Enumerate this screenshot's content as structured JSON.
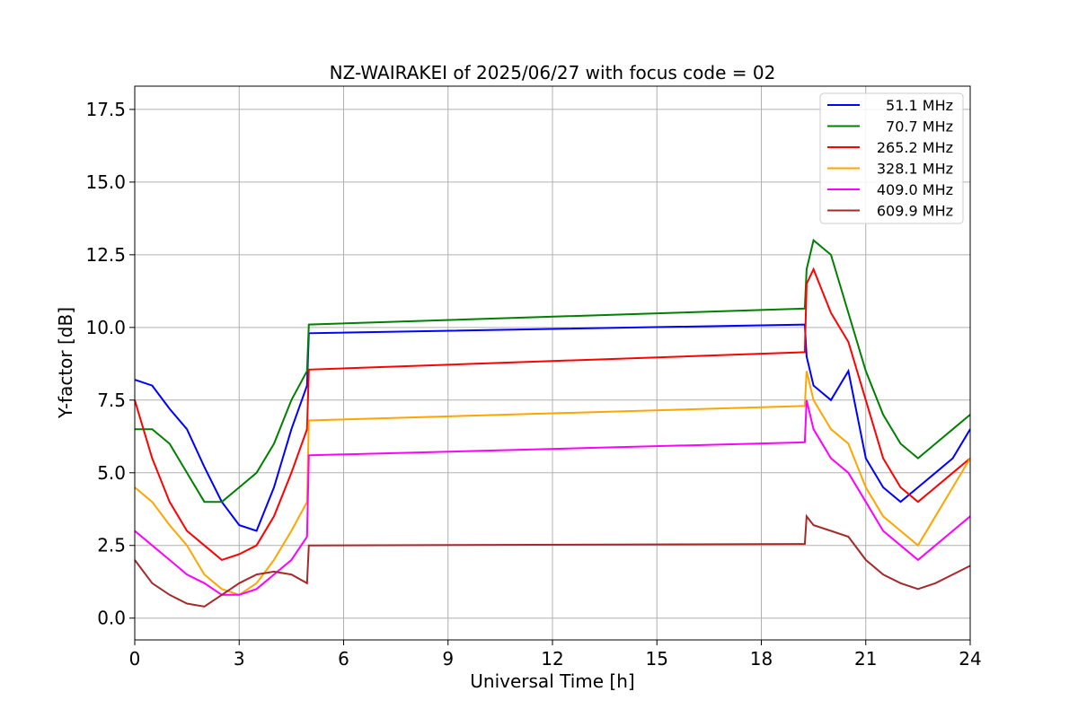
{
  "chart_data": {
    "type": "line",
    "title": "NZ-WAIRAKEI of 2025/06/27 with focus code = 02",
    "xlabel": "Universal Time [h]",
    "ylabel": "Y-factor [dB]",
    "xlim": [
      0,
      24
    ],
    "ylim": [
      -0.75,
      18.3
    ],
    "xticks": [
      0,
      3,
      6,
      9,
      12,
      15,
      18,
      21,
      24
    ],
    "yticks": [
      0.0,
      2.5,
      5.0,
      7.5,
      10.0,
      12.5,
      15.0,
      17.5
    ],
    "xtick_labels": [
      "0",
      "3",
      "6",
      "9",
      "12",
      "15",
      "18",
      "21",
      "24"
    ],
    "ytick_labels": [
      "0.0",
      "2.5",
      "5.0",
      "7.5",
      "10.0",
      "12.5",
      "15.0",
      "17.5"
    ],
    "grid": true,
    "legend_position": "top-right",
    "series": [
      {
        "name": "51.1 MHz",
        "color": "#0000ff",
        "x": [
          0,
          0.5,
          1,
          1.5,
          2,
          2.5,
          3,
          3.5,
          4,
          4.5,
          4.95,
          5.0,
          19.25,
          19.3,
          19.5,
          20,
          20.5,
          21,
          21.5,
          22,
          22.5,
          23,
          23.5,
          24
        ],
        "y": [
          8.2,
          8.0,
          7.2,
          6.5,
          5.2,
          4.0,
          3.2,
          3.0,
          4.5,
          6.5,
          8.0,
          9.8,
          10.1,
          9.0,
          8.0,
          7.5,
          8.5,
          5.5,
          4.5,
          4.0,
          4.5,
          5.0,
          5.5,
          6.5
        ]
      },
      {
        "name": "70.7 MHz",
        "color": "#008000",
        "x": [
          0,
          0.5,
          1,
          1.5,
          2,
          2.5,
          3,
          3.5,
          4,
          4.5,
          4.95,
          5.0,
          19.25,
          19.3,
          19.5,
          20,
          20.5,
          21,
          21.5,
          22,
          22.5,
          23,
          23.5,
          24
        ],
        "y": [
          6.5,
          6.5,
          6.0,
          5.0,
          4.0,
          4.0,
          4.5,
          5.0,
          6.0,
          7.5,
          8.5,
          10.1,
          10.65,
          12.0,
          13.0,
          12.5,
          10.5,
          8.5,
          7.0,
          6.0,
          5.5,
          6.0,
          6.5,
          7.0
        ]
      },
      {
        "name": "265.2 MHz",
        "color": "#ff0000",
        "x": [
          0,
          0.5,
          1,
          1.5,
          2,
          2.5,
          3,
          3.5,
          4,
          4.5,
          4.95,
          5.0,
          19.25,
          19.3,
          19.5,
          20,
          20.5,
          21,
          21.5,
          22,
          22.5,
          23,
          23.5,
          24
        ],
        "y": [
          7.5,
          5.5,
          4.0,
          3.0,
          2.5,
          2.0,
          2.2,
          2.5,
          3.5,
          5.0,
          6.5,
          8.55,
          9.15,
          11.5,
          12.0,
          10.5,
          9.5,
          7.5,
          5.5,
          4.5,
          4.0,
          4.5,
          5.0,
          5.5
        ]
      },
      {
        "name": "328.1 MHz",
        "color": "#ffa500",
        "x": [
          0,
          0.5,
          1,
          1.5,
          2,
          2.5,
          3,
          3.5,
          4,
          4.5,
          4.95,
          5.0,
          19.25,
          19.3,
          19.5,
          20,
          20.5,
          21,
          21.5,
          22,
          22.5,
          23,
          23.5,
          24
        ],
        "y": [
          4.5,
          4.0,
          3.2,
          2.5,
          1.5,
          1.0,
          0.8,
          1.2,
          2.0,
          3.0,
          4.0,
          6.8,
          7.3,
          8.5,
          7.5,
          6.5,
          6.0,
          4.5,
          3.5,
          3.0,
          2.5,
          3.5,
          4.5,
          5.5
        ]
      },
      {
        "name": "409.0 MHz",
        "color": "#ff00ff",
        "x": [
          0,
          0.5,
          1,
          1.5,
          2,
          2.5,
          3,
          3.5,
          4,
          4.5,
          4.95,
          5.0,
          19.25,
          19.3,
          19.5,
          20,
          20.5,
          21,
          21.5,
          22,
          22.5,
          23,
          23.5,
          24
        ],
        "y": [
          3.0,
          2.5,
          2.0,
          1.5,
          1.2,
          0.8,
          0.8,
          1.0,
          1.5,
          2.0,
          2.8,
          5.6,
          6.05,
          7.5,
          6.5,
          5.5,
          5.0,
          4.0,
          3.0,
          2.5,
          2.0,
          2.5,
          3.0,
          3.5
        ]
      },
      {
        "name": "609.9 MHz",
        "color": "#a52a2a",
        "x": [
          0,
          0.5,
          1,
          1.5,
          2,
          2.5,
          3,
          3.5,
          4,
          4.5,
          4.95,
          5.0,
          19.25,
          19.3,
          19.5,
          20,
          20.5,
          21,
          21.5,
          22,
          22.5,
          23,
          23.5,
          24
        ],
        "y": [
          2.0,
          1.2,
          0.8,
          0.5,
          0.4,
          0.8,
          1.2,
          1.5,
          1.6,
          1.5,
          1.2,
          2.5,
          2.55,
          3.5,
          3.2,
          3.0,
          2.8,
          2.0,
          1.5,
          1.2,
          1.0,
          1.2,
          1.5,
          1.8
        ]
      }
    ]
  }
}
